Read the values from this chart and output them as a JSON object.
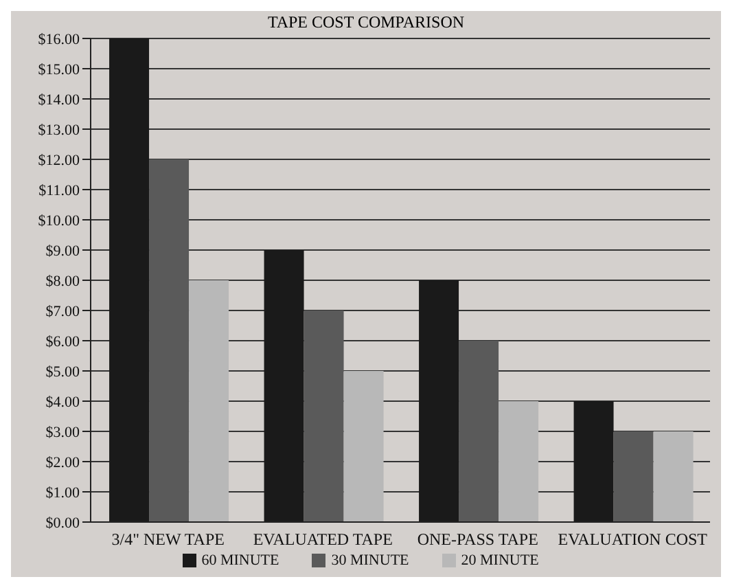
{
  "chart_data": {
    "type": "bar",
    "title": "TAPE COST COMPARISON",
    "categories": [
      "3/4\" NEW TAPE",
      "EVALUATED TAPE",
      "ONE-PASS TAPE",
      "EVALUATION COST"
    ],
    "series": [
      {
        "name": "60 MINUTE",
        "color": "#1a1a1a",
        "values": [
          16,
          9,
          8,
          4
        ]
      },
      {
        "name": "30 MINUTE",
        "color": "#5a5a5a",
        "values": [
          12,
          7,
          6,
          3
        ]
      },
      {
        "name": "20 MINUTE",
        "color": "#b8b8b8",
        "values": [
          8,
          5,
          4,
          3
        ]
      }
    ],
    "ylim": [
      0,
      16
    ],
    "yticks": [
      {
        "value": 0,
        "label": "$0.00"
      },
      {
        "value": 1,
        "label": "$1.00"
      },
      {
        "value": 2,
        "label": "$2.00"
      },
      {
        "value": 3,
        "label": "$3.00"
      },
      {
        "value": 4,
        "label": "$4.00"
      },
      {
        "value": 5,
        "label": "$5.00"
      },
      {
        "value": 6,
        "label": "$6.00"
      },
      {
        "value": 7,
        "label": "$7.00"
      },
      {
        "value": 8,
        "label": "$8.00"
      },
      {
        "value": 9,
        "label": "$9.00"
      },
      {
        "value": 10,
        "label": "$10.00"
      },
      {
        "value": 11,
        "label": "$11.00"
      },
      {
        "value": 12,
        "label": "$12.00"
      },
      {
        "value": 13,
        "label": "$13.00"
      },
      {
        "value": 14,
        "label": "$14.00"
      },
      {
        "value": 15,
        "label": "$15.00"
      },
      {
        "value": 16,
        "label": "$16.00"
      }
    ],
    "grid": "y",
    "legend": "bottom"
  }
}
